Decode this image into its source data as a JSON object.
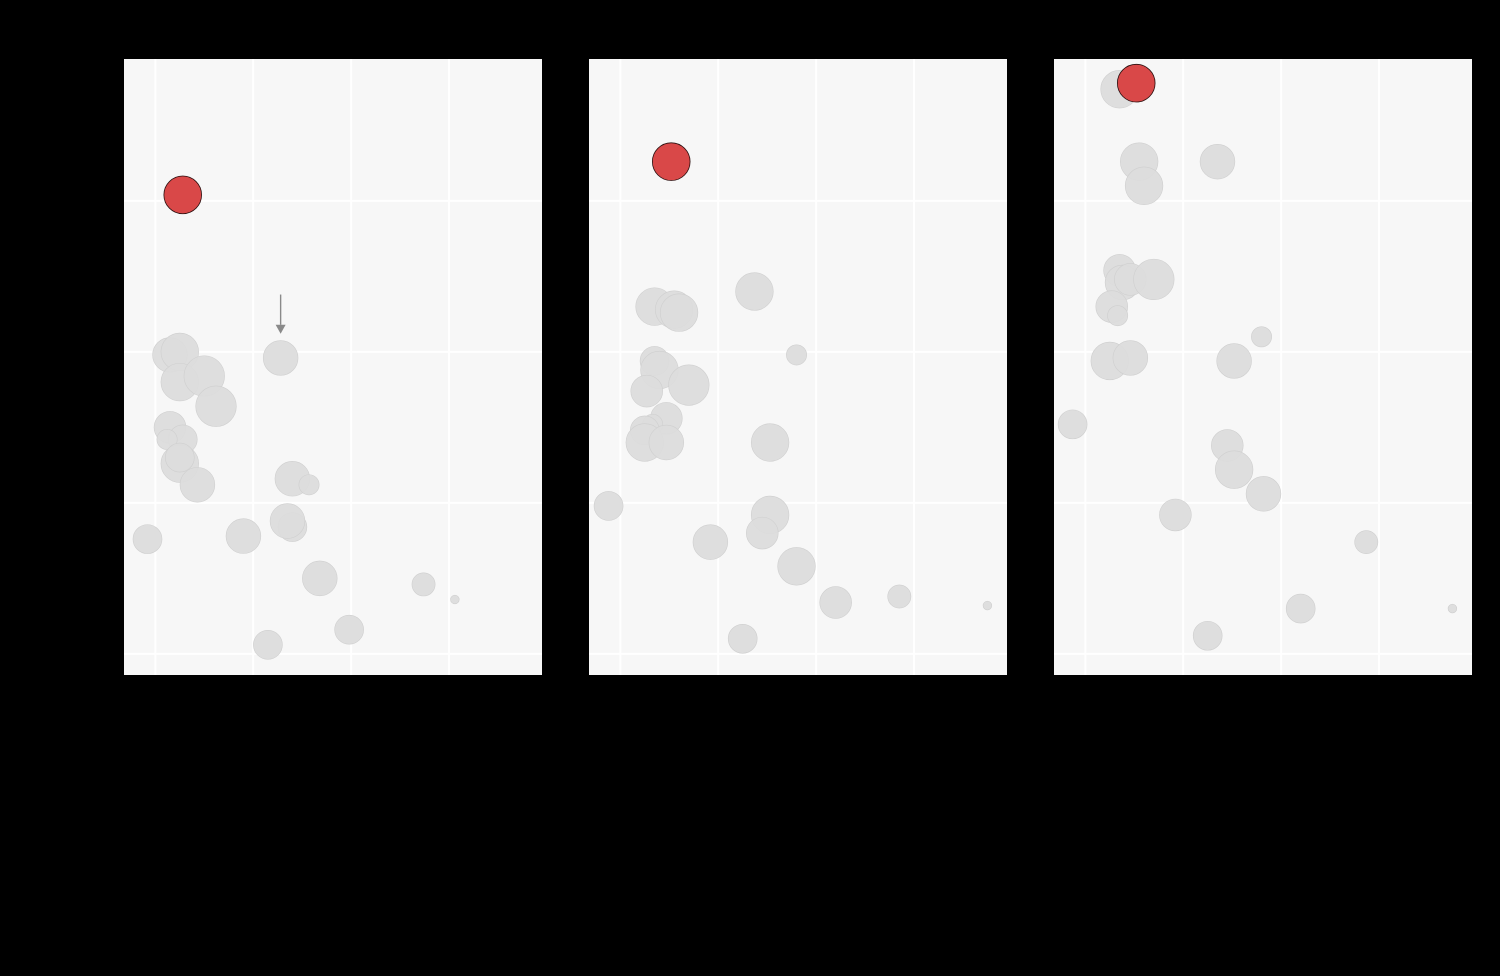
{
  "colors": {
    "background": "#000000",
    "panel": "#f7f7f7",
    "grid": "#ffffff",
    "point": "#dcdcdc",
    "highlight": "#d94848",
    "highlight_edge": "#2a0f0f",
    "arrow": "#8a8a8a"
  },
  "chart_data": [
    {
      "type": "scatter",
      "grid": true,
      "xlim": [
        -0.32,
        3.95
      ],
      "ylim": [
        -0.07,
        1.97
      ],
      "x_gridlines": [
        0,
        1,
        2,
        3
      ],
      "y_gridlines": [
        0,
        0.5,
        1.0,
        1.5
      ],
      "points": [
        {
          "x": -0.08,
          "y": 0.38,
          "size": 1.0
        },
        {
          "x": 0.15,
          "y": 0.99,
          "size": 1.2
        },
        {
          "x": 0.25,
          "y": 1.0,
          "size": 1.3
        },
        {
          "x": 0.25,
          "y": 0.9,
          "size": 1.3
        },
        {
          "x": 0.5,
          "y": 0.92,
          "size": 1.4
        },
        {
          "x": 0.62,
          "y": 0.82,
          "size": 1.4
        },
        {
          "x": 0.15,
          "y": 0.75,
          "size": 1.1
        },
        {
          "x": 0.28,
          "y": 0.71,
          "size": 1.0
        },
        {
          "x": 0.12,
          "y": 0.71,
          "size": 0.7
        },
        {
          "x": 0.25,
          "y": 0.63,
          "size": 1.3
        },
        {
          "x": 0.25,
          "y": 0.65,
          "size": 1.0
        },
        {
          "x": 0.43,
          "y": 0.56,
          "size": 1.2
        },
        {
          "x": 0.9,
          "y": 0.39,
          "size": 1.2
        },
        {
          "x": 1.28,
          "y": 0.98,
          "size": 1.2
        },
        {
          "x": 1.4,
          "y": 0.58,
          "size": 1.2
        },
        {
          "x": 1.57,
          "y": 0.56,
          "size": 0.7
        },
        {
          "x": 1.4,
          "y": 0.42,
          "size": 1.0
        },
        {
          "x": 1.35,
          "y": 0.44,
          "size": 1.2
        },
        {
          "x": 1.68,
          "y": 0.25,
          "size": 1.2
        },
        {
          "x": 1.15,
          "y": 0.03,
          "size": 1.0
        },
        {
          "x": 1.98,
          "y": 0.08,
          "size": 1.0
        },
        {
          "x": 2.74,
          "y": 0.23,
          "size": 0.8
        },
        {
          "x": 3.06,
          "y": 0.18,
          "size": 0.3
        },
        {
          "x": 0.28,
          "y": 1.52,
          "size": 1.3,
          "highlight": true
        }
      ],
      "arrow": {
        "x": 1.28,
        "y_from": 1.19,
        "y_to": 1.06
      }
    },
    {
      "type": "scatter",
      "grid": true,
      "xlim": [
        -0.32,
        3.95
      ],
      "ylim": [
        -0.07,
        1.97
      ],
      "x_gridlines": [
        0,
        1,
        2,
        3
      ],
      "y_gridlines": [
        0,
        0.5,
        1.0,
        1.5
      ],
      "points": [
        {
          "x": -0.12,
          "y": 0.49,
          "size": 1.0
        },
        {
          "x": 0.35,
          "y": 1.15,
          "size": 1.3
        },
        {
          "x": 0.55,
          "y": 1.14,
          "size": 1.3
        },
        {
          "x": 0.6,
          "y": 1.13,
          "size": 1.3
        },
        {
          "x": 0.35,
          "y": 0.97,
          "size": 1.0
        },
        {
          "x": 0.4,
          "y": 0.94,
          "size": 1.3
        },
        {
          "x": 0.7,
          "y": 0.89,
          "size": 1.4
        },
        {
          "x": 0.27,
          "y": 0.87,
          "size": 1.1
        },
        {
          "x": 0.47,
          "y": 0.78,
          "size": 1.1
        },
        {
          "x": 0.33,
          "y": 0.76,
          "size": 0.7
        },
        {
          "x": 0.25,
          "y": 0.74,
          "size": 1.0
        },
        {
          "x": 0.25,
          "y": 0.7,
          "size": 1.3
        },
        {
          "x": 0.47,
          "y": 0.7,
          "size": 1.2
        },
        {
          "x": 1.37,
          "y": 1.2,
          "size": 1.3
        },
        {
          "x": 1.8,
          "y": 0.99,
          "size": 0.7
        },
        {
          "x": 1.53,
          "y": 0.7,
          "size": 1.3
        },
        {
          "x": 1.53,
          "y": 0.46,
          "size": 1.3
        },
        {
          "x": 1.45,
          "y": 0.4,
          "size": 1.1
        },
        {
          "x": 0.92,
          "y": 0.37,
          "size": 1.2
        },
        {
          "x": 1.8,
          "y": 0.29,
          "size": 1.3
        },
        {
          "x": 2.2,
          "y": 0.17,
          "size": 1.1
        },
        {
          "x": 2.85,
          "y": 0.19,
          "size": 0.8
        },
        {
          "x": 1.25,
          "y": 0.05,
          "size": 1.0
        },
        {
          "x": 3.75,
          "y": 0.16,
          "size": 0.3
        },
        {
          "x": 0.52,
          "y": 1.63,
          "size": 1.3,
          "highlight": true
        }
      ]
    },
    {
      "type": "scatter",
      "grid": true,
      "xlim": [
        -0.32,
        3.95
      ],
      "ylim": [
        -0.07,
        1.97
      ],
      "x_gridlines": [
        0,
        1,
        2,
        3
      ],
      "y_gridlines": [
        0,
        0.5,
        1.0,
        1.5
      ],
      "points": [
        {
          "x": -0.13,
          "y": 0.76,
          "size": 1.0
        },
        {
          "x": 0.35,
          "y": 1.87,
          "size": 1.3
        },
        {
          "x": 0.55,
          "y": 1.63,
          "size": 1.3
        },
        {
          "x": 0.6,
          "y": 1.55,
          "size": 1.3
        },
        {
          "x": 1.35,
          "y": 1.63,
          "size": 1.2
        },
        {
          "x": 0.35,
          "y": 1.27,
          "size": 1.1
        },
        {
          "x": 0.38,
          "y": 1.23,
          "size": 1.2
        },
        {
          "x": 0.46,
          "y": 1.24,
          "size": 1.1
        },
        {
          "x": 0.7,
          "y": 1.24,
          "size": 1.4
        },
        {
          "x": 0.27,
          "y": 1.15,
          "size": 1.1
        },
        {
          "x": 0.33,
          "y": 1.12,
          "size": 0.7
        },
        {
          "x": 0.25,
          "y": 0.97,
          "size": 1.3
        },
        {
          "x": 0.46,
          "y": 0.98,
          "size": 1.2
        },
        {
          "x": 1.52,
          "y": 0.97,
          "size": 1.2
        },
        {
          "x": 1.8,
          "y": 1.05,
          "size": 0.7
        },
        {
          "x": 1.45,
          "y": 0.69,
          "size": 1.1
        },
        {
          "x": 1.52,
          "y": 0.61,
          "size": 1.3
        },
        {
          "x": 1.82,
          "y": 0.53,
          "size": 1.2
        },
        {
          "x": 0.92,
          "y": 0.46,
          "size": 1.1
        },
        {
          "x": 2.87,
          "y": 0.37,
          "size": 0.8
        },
        {
          "x": 2.2,
          "y": 0.15,
          "size": 1.0
        },
        {
          "x": 1.25,
          "y": 0.06,
          "size": 1.0
        },
        {
          "x": 3.75,
          "y": 0.15,
          "size": 0.3
        },
        {
          "x": 0.52,
          "y": 1.89,
          "size": 1.3,
          "highlight": true
        }
      ]
    }
  ]
}
